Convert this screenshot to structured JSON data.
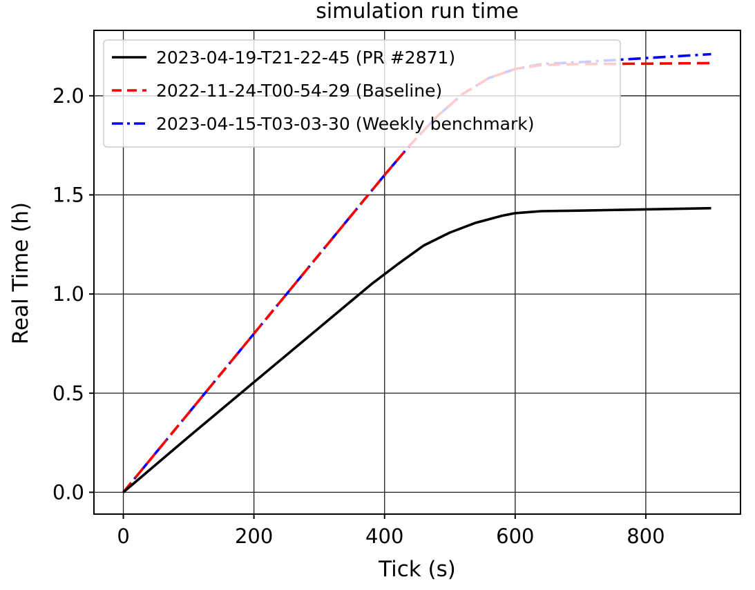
{
  "chart_data": {
    "type": "line",
    "title": "simulation run time",
    "xlabel": "Tick (s)",
    "ylabel": "Real Time (h)",
    "xlim": [
      -45,
      945
    ],
    "ylim": [
      -0.11,
      2.33
    ],
    "xticks": [
      0,
      200,
      400,
      600,
      800
    ],
    "xtick_labels": [
      "0",
      "200",
      "400",
      "600",
      "800"
    ],
    "yticks": [
      0.0,
      0.5,
      1.0,
      1.5,
      2.0
    ],
    "ytick_labels": [
      "0.0",
      "0.5",
      "1.0",
      "1.5",
      "2.0"
    ],
    "grid": true,
    "legend_position": "top-left",
    "series": [
      {
        "name": "2023-04-19-T21-22-45 (PR #2871)",
        "color": "#000000",
        "style": "solid",
        "x": [
          0,
          100,
          200,
          300,
          380,
          420,
          460,
          500,
          540,
          580,
          600,
          640,
          700,
          800,
          900
        ],
        "y": [
          0.0,
          0.28,
          0.555,
          0.83,
          1.05,
          1.15,
          1.245,
          1.31,
          1.36,
          1.395,
          1.408,
          1.418,
          1.421,
          1.427,
          1.433
        ]
      },
      {
        "name": "2022-11-24-T00-54-29 (Baseline)",
        "color": "#ff0000",
        "style": "dashed",
        "x": [
          0,
          100,
          200,
          300,
          400,
          440,
          480,
          520,
          560,
          600,
          640,
          700,
          800,
          900
        ],
        "y": [
          0.0,
          0.4,
          0.8,
          1.2,
          1.6,
          1.755,
          1.895,
          2.01,
          2.09,
          2.135,
          2.155,
          2.16,
          2.162,
          2.165
        ]
      },
      {
        "name": "2023-04-15-T03-03-30 (Weekly benchmark)",
        "color": "#0000ff",
        "style": "dashdot",
        "x": [
          0,
          100,
          200,
          300,
          400,
          440,
          480,
          520,
          560,
          600,
          640,
          700,
          800,
          900
        ],
        "y": [
          0.0,
          0.4,
          0.8,
          1.2,
          1.6,
          1.755,
          1.895,
          2.01,
          2.09,
          2.135,
          2.16,
          2.17,
          2.19,
          2.21
        ]
      }
    ]
  }
}
